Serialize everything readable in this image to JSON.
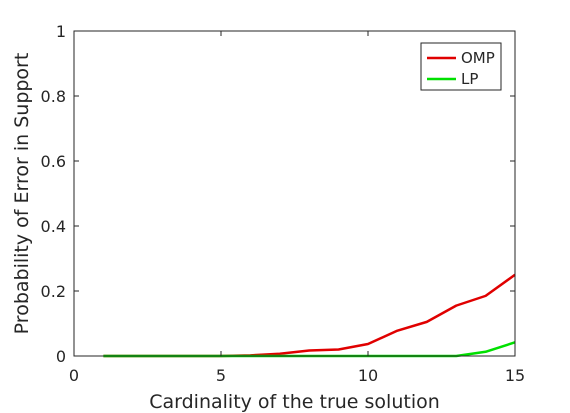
{
  "chart_data": {
    "type": "line",
    "title": "",
    "xlabel": "Cardinality of the true solution",
    "ylabel": "Probability of Error in Support",
    "xlim": [
      0,
      15
    ],
    "ylim": [
      0,
      1
    ],
    "xticks": [
      0,
      5,
      10,
      15
    ],
    "yticks": [
      0,
      0.2,
      0.4,
      0.6,
      0.8,
      1
    ],
    "xtick_labels": [
      "0",
      "5",
      "10",
      "15"
    ],
    "ytick_labels": [
      "0",
      "0.2",
      "0.4",
      "0.6",
      "0.8",
      "1"
    ],
    "grid": false,
    "legend_position": "top-right",
    "x": [
      1,
      2,
      3,
      4,
      5,
      6,
      7,
      8,
      9,
      10,
      11,
      12,
      13,
      14,
      15
    ],
    "series": [
      {
        "name": "OMP",
        "color": "#e00000",
        "values": [
          0,
          0,
          0,
          0,
          0,
          0.002,
          0.007,
          0.017,
          0.02,
          0.037,
          0.078,
          0.105,
          0.155,
          0.185,
          0.25
        ]
      },
      {
        "name": "LP",
        "color": "#00e000",
        "values": [
          0,
          0,
          0,
          0,
          0,
          0,
          0,
          0,
          0,
          0,
          0,
          0,
          0,
          0.013,
          0.042
        ]
      }
    ]
  }
}
